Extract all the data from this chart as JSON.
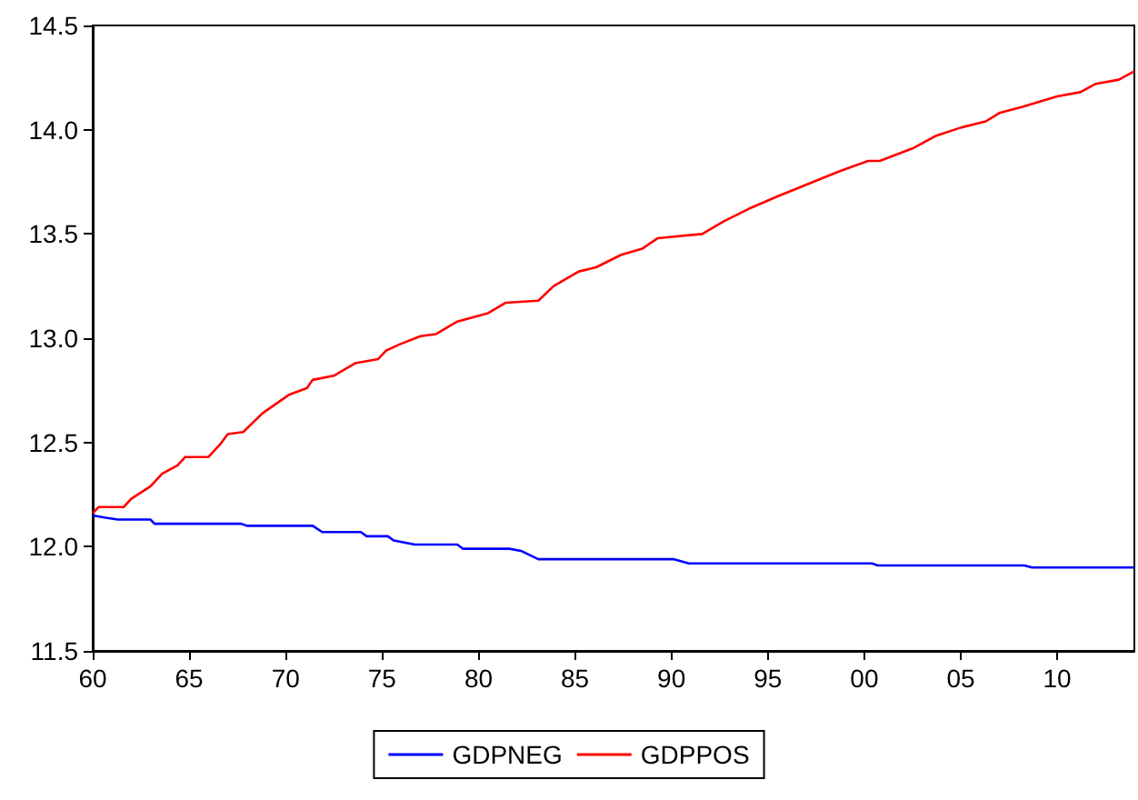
{
  "chart_data": {
    "type": "line",
    "xlim": [
      1960,
      2014
    ],
    "xticks": [
      {
        "value": 1960,
        "label": "60"
      },
      {
        "value": 1965,
        "label": "65"
      },
      {
        "value": 1970,
        "label": "70"
      },
      {
        "value": 1975,
        "label": "75"
      },
      {
        "value": 1980,
        "label": "80"
      },
      {
        "value": 1985,
        "label": "85"
      },
      {
        "value": 1990,
        "label": "90"
      },
      {
        "value": 1995,
        "label": "95"
      },
      {
        "value": 2000,
        "label": "00"
      },
      {
        "value": 2005,
        "label": "05"
      },
      {
        "value": 2010,
        "label": "10"
      }
    ],
    "ylim": [
      11.5,
      14.5
    ],
    "yticks": [
      11.5,
      {
        "value": 12,
        "label": "12.0"
      },
      12.5,
      {
        "value": 13,
        "label": "13.0"
      },
      13.5,
      {
        "value": 14,
        "label": "14.0"
      },
      14.5
    ],
    "grid": false,
    "legend": "bottom",
    "marker": "none",
    "line_style": "solid",
    "series": [
      {
        "name": "GDPNEG",
        "color": "#0000ff",
        "x": [
          1960,
          1960.6,
          1961.3,
          1963,
          1963.2,
          1967.7,
          1968,
          1971.4,
          1971.9,
          1973.9,
          1974.2,
          1975.3,
          1975.6,
          1976.7,
          1978.9,
          1979.2,
          1981.6,
          1982.2,
          1983.1,
          1990.1,
          1990.9,
          2000.4,
          2000.7,
          2008.3,
          2008.7,
          2014
        ],
        "values": [
          12.15,
          12.14,
          12.13,
          12.13,
          12.11,
          12.11,
          12.1,
          12.1,
          12.07,
          12.07,
          12.05,
          12.05,
          12.03,
          12.01,
          12.01,
          11.99,
          11.99,
          11.98,
          11.94,
          11.94,
          11.92,
          11.92,
          11.91,
          11.91,
          11.9,
          11.9
        ]
      },
      {
        "name": "GDPPOS",
        "color": "#ff0000",
        "x": [
          1960,
          1960.3,
          1961.6,
          1962,
          1963,
          1963.6,
          1964.4,
          1964.8,
          1966,
          1966.6,
          1967,
          1967.8,
          1968.8,
          1970.2,
          1971.1,
          1971.4,
          1972.5,
          1973.6,
          1974.8,
          1975.2,
          1975.9,
          1977,
          1977.8,
          1978.9,
          1980.5,
          1981.4,
          1983.1,
          1983.9,
          1985.2,
          1986.1,
          1987.4,
          1988.5,
          1989.3,
          1991.6,
          1992.7,
          1994,
          1995.5,
          1997.1,
          1998.7,
          2000.2,
          2000.8,
          2002.5,
          2003.7,
          2005,
          2006.3,
          2007,
          2008.2,
          2010,
          2011.2,
          2012,
          2013.2,
          2014
        ],
        "values": [
          12.16,
          12.19,
          12.19,
          12.23,
          12.29,
          12.35,
          12.39,
          12.43,
          12.43,
          12.49,
          12.54,
          12.55,
          12.64,
          12.73,
          12.76,
          12.8,
          12.82,
          12.88,
          12.9,
          12.94,
          12.97,
          13.01,
          13.02,
          13.08,
          13.12,
          13.17,
          13.18,
          13.25,
          13.32,
          13.34,
          13.4,
          13.43,
          13.48,
          13.5,
          13.56,
          13.62,
          13.68,
          13.74,
          13.8,
          13.85,
          13.85,
          13.91,
          13.97,
          14.01,
          14.04,
          14.08,
          14.11,
          14.16,
          14.18,
          14.22,
          14.24,
          14.28
        ]
      }
    ]
  }
}
